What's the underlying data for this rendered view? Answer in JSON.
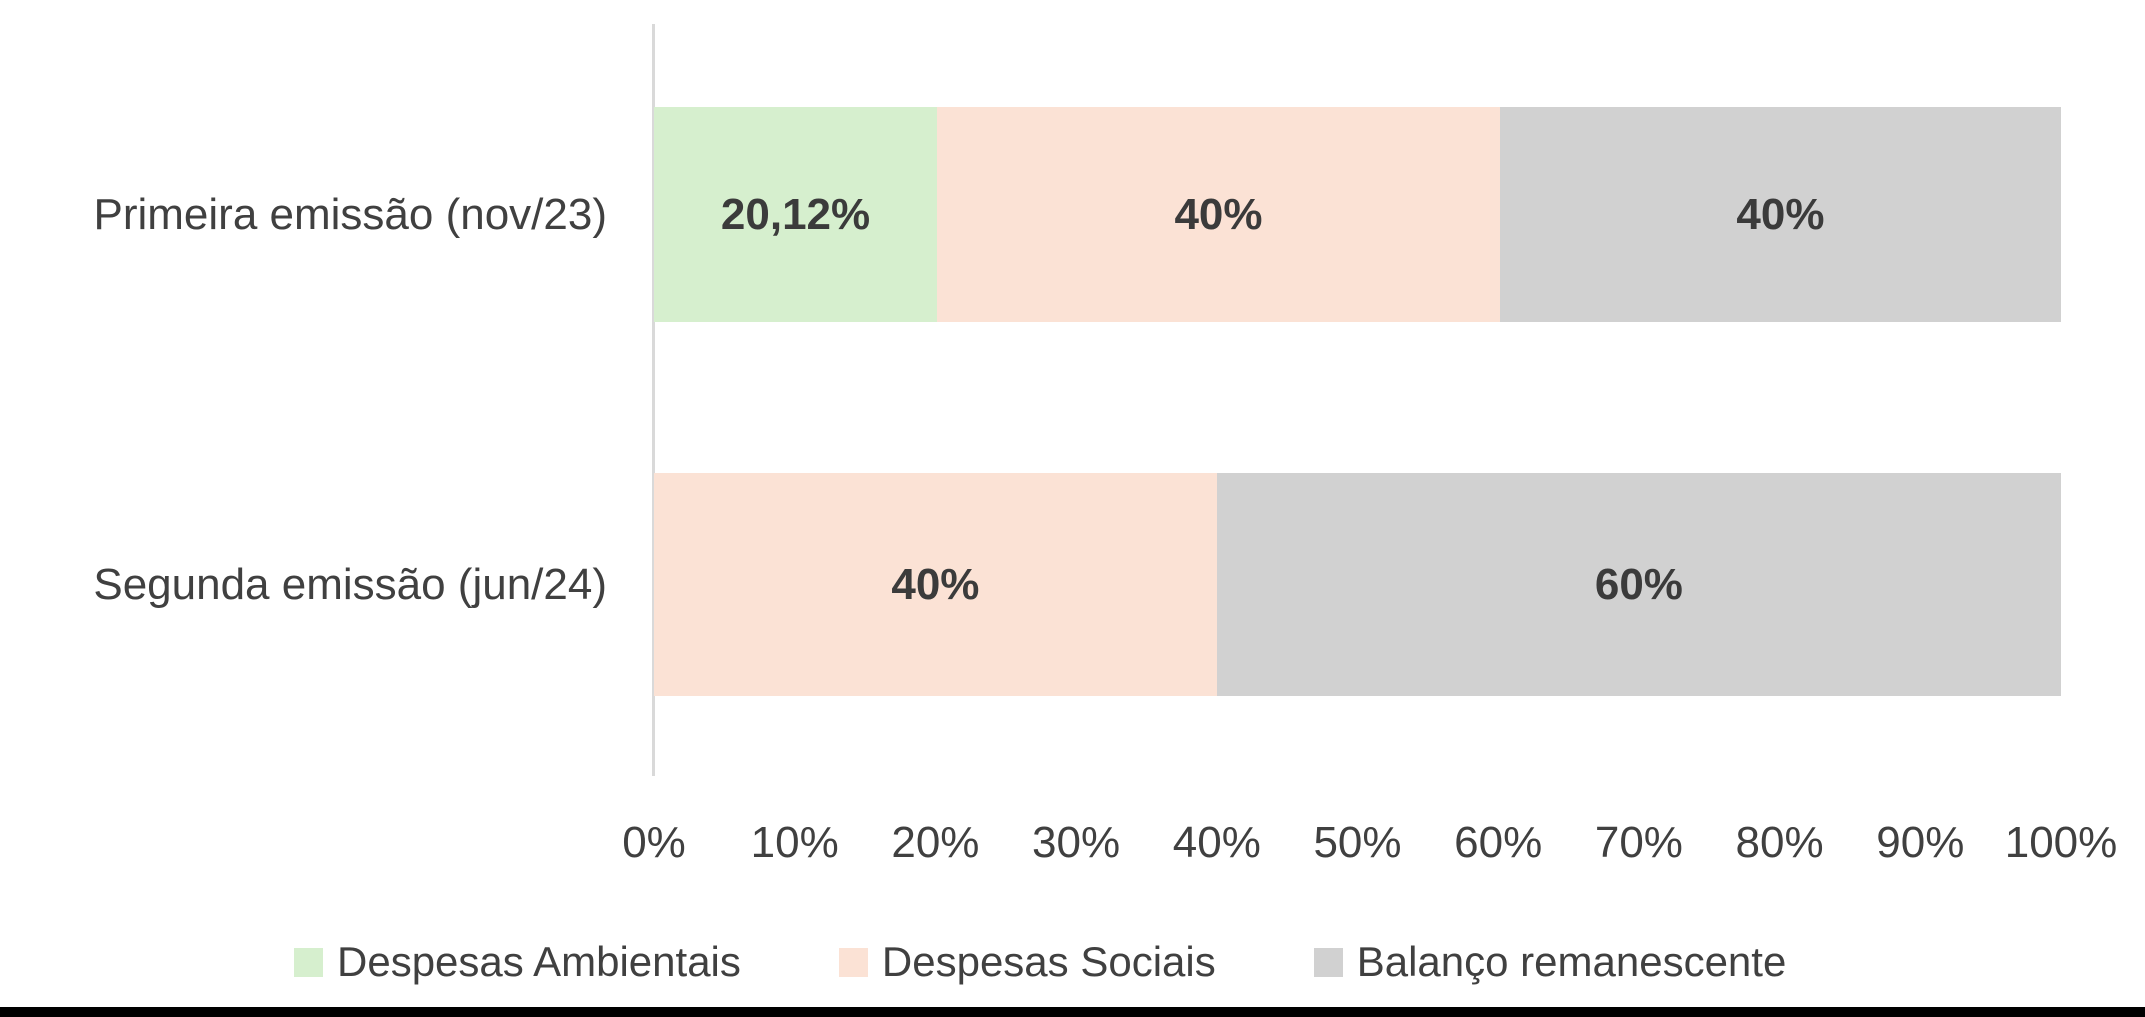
{
  "chart_data": {
    "type": "bar",
    "orientation": "horizontal-stacked",
    "title": "",
    "categories": [
      "Primeira emissão (nov/23)",
      "Segunda emissão (jun/24)"
    ],
    "series": [
      {
        "name": "Despesas Ambientais",
        "color": "#D6EFCE",
        "values": [
          20.12,
          0
        ]
      },
      {
        "name": "Despesas Sociais",
        "color": "#FBE2D5",
        "values": [
          40,
          40
        ]
      },
      {
        "name": "Balanço remanescente",
        "color": "#D1D1D1",
        "values": [
          39.88,
          60
        ]
      }
    ],
    "value_labels": [
      [
        "20,12%",
        "40%",
        "40%"
      ],
      [
        "",
        "40%",
        "60%"
      ]
    ],
    "x_ticks": [
      "0%",
      "10%",
      "20%",
      "30%",
      "40%",
      "50%",
      "60%",
      "70%",
      "80%",
      "90%",
      "100%"
    ],
    "xlim": [
      0,
      100
    ],
    "grid": "off",
    "legend_position": "bottom",
    "colors": {
      "axis_line": "#D9D9D9",
      "text": "#404040",
      "value_label_text": "#3B3B3B",
      "bottom_strip": "#000000",
      "background": "#FFFFFF"
    }
  }
}
